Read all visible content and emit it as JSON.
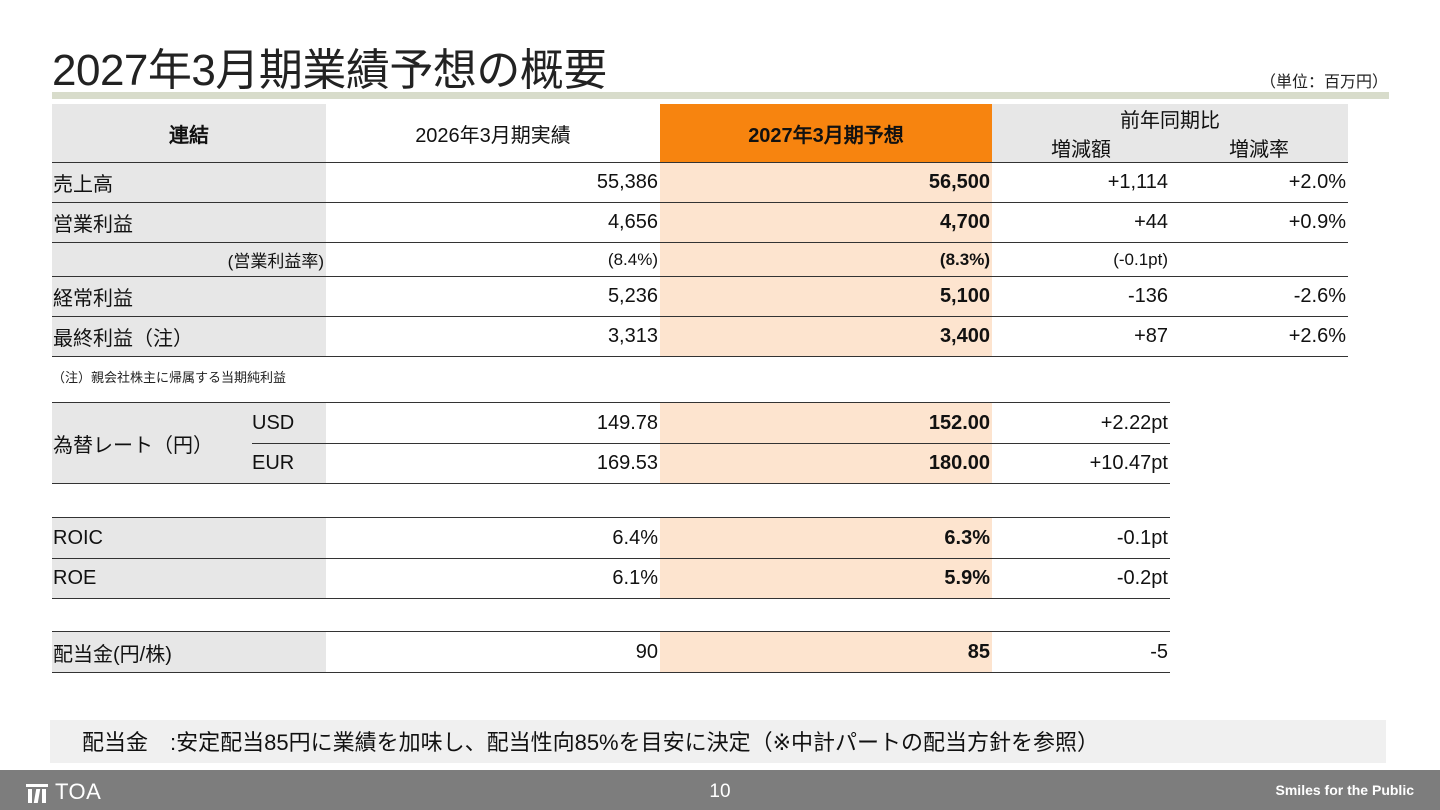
{
  "title": "2027年3月期業績予想の概要",
  "unit": "（単位：百万円）",
  "header": {
    "col_label": "連結",
    "col_prev": "2026年3月期実績",
    "col_fcst": "2027年3月期予想",
    "col_yoy": "前年同期比",
    "col_diff": "増減額",
    "col_rate": "増減率"
  },
  "rows": [
    {
      "label": "売上高",
      "prev": "55,386",
      "fcst": "56,500",
      "diff": "+1,114",
      "rate": "+2.0%"
    },
    {
      "label": "営業利益",
      "prev": "4,656",
      "fcst": "4,700",
      "diff": "+44",
      "rate": "+0.9%"
    },
    {
      "label": "(営業利益率)",
      "prev": "(8.4%)",
      "fcst": "(8.3%)",
      "diff": "(-0.1pt)",
      "rate": ""
    },
    {
      "label": "経常利益",
      "prev": "5,236",
      "fcst": "5,100",
      "diff": "-136",
      "rate": "-2.6%"
    },
    {
      "label": "最終利益（注）",
      "prev": "3,313",
      "fcst": "3,400",
      "diff": "+87",
      "rate": "+2.6%"
    }
  ],
  "note": "（注）親会社株主に帰属する当期純利益",
  "fx": {
    "label": "為替レート（円）",
    "rows": [
      {
        "currency": "USD",
        "prev": "149.78",
        "fcst": "152.00",
        "diff": "+2.22pt"
      },
      {
        "currency": "EUR",
        "prev": "169.53",
        "fcst": "180.00",
        "diff": "+10.47pt"
      }
    ]
  },
  "ratios": [
    {
      "label": "ROIC",
      "prev": "6.4%",
      "fcst": "6.3%",
      "diff": "-0.1pt"
    },
    {
      "label": "ROE",
      "prev": "6.1%",
      "fcst": "5.9%",
      "diff": "-0.2pt"
    }
  ],
  "dividend": {
    "label": "配当金(円/株)",
    "prev": "90",
    "fcst": "85",
    "diff": "-5"
  },
  "banner": "配当金　:安定配当85円に業績を加味し、配当性向85%を目安に決定（※中計パートの配当方針を参照）",
  "footer": {
    "logo": "TOA",
    "page": "10",
    "slogan": "Smiles for the Public"
  },
  "colors": {
    "accent_orange": "#f7840f",
    "forecast_peach": "#fde4cf",
    "label_grey": "#e7e7e7",
    "footer_grey": "#7d7d7d"
  }
}
